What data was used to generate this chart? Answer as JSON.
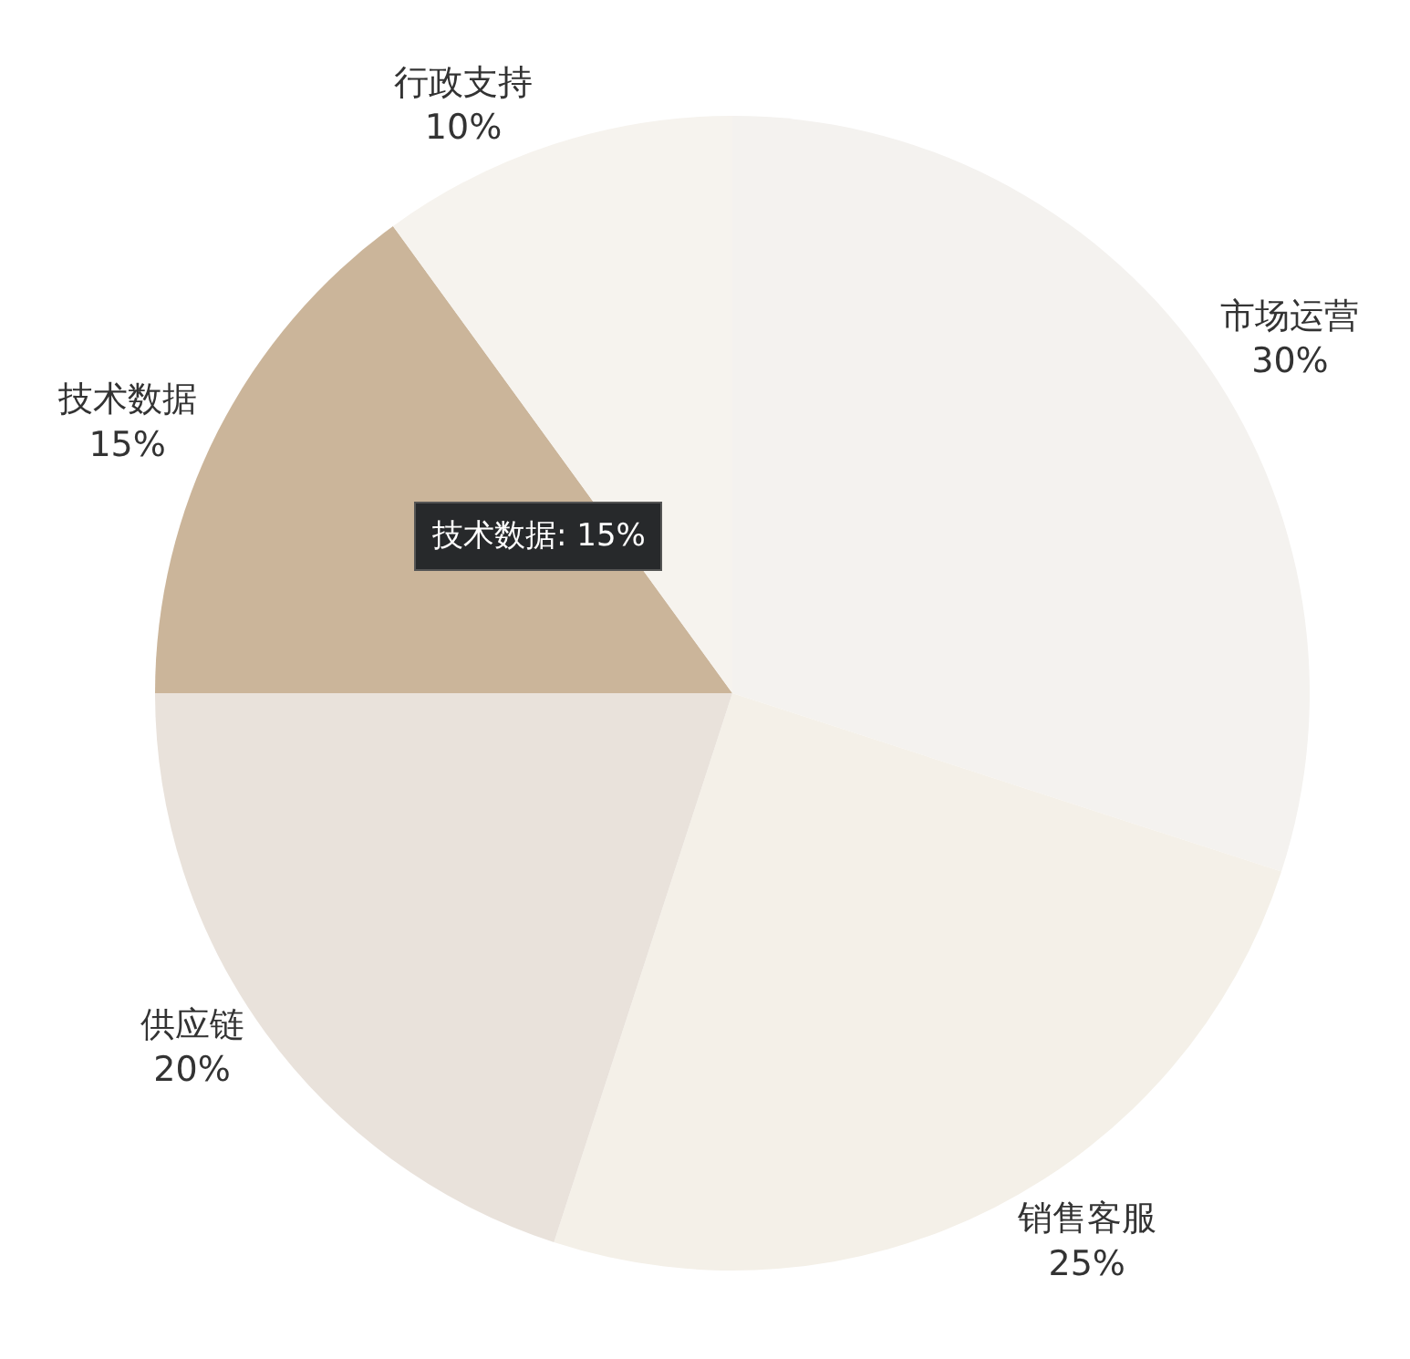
{
  "chart_data": {
    "type": "pie",
    "categories": [
      "市场运营",
      "销售客服",
      "供应链",
      "技术数据",
      "行政支持"
    ],
    "values": [
      30,
      25,
      20,
      15,
      10
    ],
    "value_labels": [
      "30%",
      "25%",
      "20%",
      "15%",
      "10%"
    ],
    "colors": [
      "#f4f2ef",
      "#f4f0e8",
      "#e9e2db",
      "#cbb59a",
      "#f6f3ee"
    ],
    "annotations": [
      "技术数据: 15%"
    ],
    "legend": false
  }
}
